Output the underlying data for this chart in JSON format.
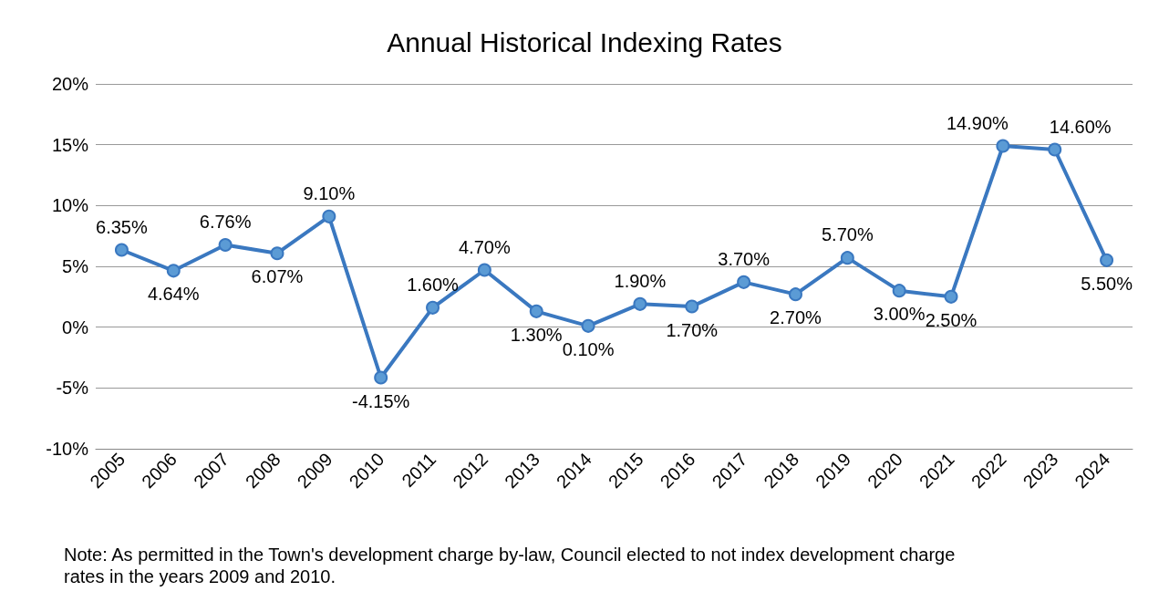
{
  "chart_data": {
    "type": "line",
    "title": "Annual Historical Indexing Rates",
    "categories": [
      "2005",
      "2006",
      "2007",
      "2008",
      "2009",
      "2010",
      "2011",
      "2012",
      "2013",
      "2014",
      "2015",
      "2016",
      "2017",
      "2018",
      "2019",
      "2020",
      "2021",
      "2022",
      "2023",
      "2024"
    ],
    "series": [
      {
        "color": "#3a78c0",
        "values": [
          6.35,
          4.64,
          6.76,
          6.07,
          9.1,
          -4.15,
          1.6,
          4.7,
          1.3,
          0.1,
          1.9,
          1.7,
          3.7,
          2.7,
          5.7,
          3.0,
          2.5,
          14.9,
          14.6,
          5.5
        ],
        "value_labels": [
          "6.35%",
          "4.64%",
          "6.76%",
          "6.07%",
          "9.10%",
          "-4.15%",
          "1.60%",
          "4.70%",
          "1.30%",
          "0.10%",
          "1.90%",
          "1.70%",
          "3.70%",
          "2.70%",
          "5.70%",
          "3.00%",
          "2.50%",
          "14.90%",
          "14.60%",
          "5.50%"
        ]
      }
    ],
    "ylim": [
      -10,
      20
    ],
    "yticks": [
      {
        "value": -10,
        "label": "-10%"
      },
      {
        "value": -5,
        "label": "-5%"
      },
      {
        "value": 0,
        "label": "0%"
      },
      {
        "value": 5,
        "label": "5%"
      },
      {
        "value": 10,
        "label": "10%"
      },
      {
        "value": 15,
        "label": "15%"
      },
      {
        "value": 20,
        "label": "20%"
      }
    ],
    "grid": "y",
    "marker": "circle",
    "line_style": "solid",
    "annotations": [
      "Note: As permitted in the Town's development charge by-law, Council elected to not index development charge rates in the years 2009 and 2010."
    ]
  }
}
